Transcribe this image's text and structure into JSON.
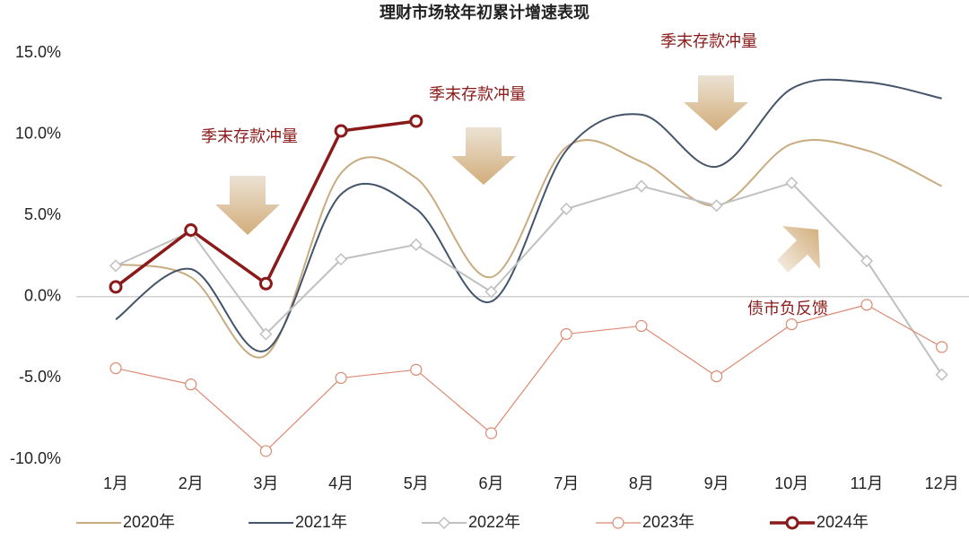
{
  "chart_data": {
    "type": "line",
    "title": "理财市场较年初累计增速表现",
    "categories": [
      "1月",
      "2月",
      "3月",
      "4月",
      "5月",
      "6月",
      "7月",
      "8月",
      "9月",
      "10月",
      "11月",
      "12月"
    ],
    "series": [
      {
        "name": "2020年",
        "color": "#c9ab80",
        "smooth": true,
        "marker": "none",
        "line_width": 2,
        "values": [
          2.0,
          1.2,
          -3.6,
          7.6,
          7.3,
          1.2,
          9.2,
          8.3,
          5.6,
          9.4,
          9.0,
          6.8
        ]
      },
      {
        "name": "2021年",
        "color": "#44546a",
        "smooth": true,
        "marker": "none",
        "line_width": 2,
        "values": [
          -1.4,
          1.7,
          -3.3,
          6.3,
          5.4,
          -0.3,
          9.0,
          11.2,
          8.0,
          12.8,
          13.2,
          12.2
        ]
      },
      {
        "name": "2022年",
        "color": "#c0c0c0",
        "smooth": false,
        "marker": "diamond",
        "line_width": 2,
        "values": [
          1.9,
          4.0,
          -2.3,
          2.3,
          3.2,
          0.3,
          5.4,
          6.8,
          5.6,
          7.0,
          2.2,
          -4.8
        ]
      },
      {
        "name": "2023年",
        "color": "#dc8a72",
        "smooth": false,
        "marker": "circle",
        "line_width": 1.2,
        "values": [
          -4.4,
          -5.4,
          -9.5,
          -5.0,
          -4.5,
          -8.4,
          -2.3,
          -1.8,
          -4.9,
          -1.7,
          -0.5,
          -3.1
        ]
      },
      {
        "name": "2024年",
        "color": "#8b1a1a",
        "smooth": false,
        "marker": "circle",
        "line_width": 3.5,
        "values": [
          0.6,
          4.1,
          0.8,
          10.2,
          10.8,
          null,
          null,
          null,
          null,
          null,
          null,
          null
        ]
      }
    ],
    "ylim": [
      -10,
      15
    ],
    "yticks": [
      {
        "value": -10,
        "label": "-10.0%"
      },
      {
        "value": -5,
        "label": "-5.0%"
      },
      {
        "value": 0,
        "label": "0.0%"
      },
      {
        "value": 5,
        "label": "5.0%"
      },
      {
        "value": 10,
        "label": "10.0%"
      },
      {
        "value": 15,
        "label": "15.0%"
      }
    ],
    "grid": false,
    "legend": "bottom",
    "annotations": [
      "季末存款冲量",
      "季末存款冲量",
      "季末存款冲量",
      "债市负反馈"
    ],
    "annotation_color": "#8b1a1a"
  }
}
